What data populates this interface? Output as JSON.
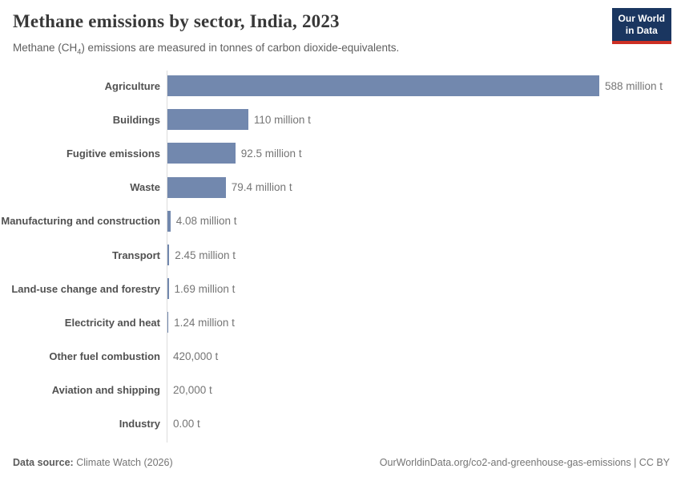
{
  "header": {
    "title": "Methane emissions by sector, India, 2023",
    "subtitle_prefix": "Methane (CH",
    "subtitle_sub": "4",
    "subtitle_suffix": ") emissions are measured in tonnes of carbon dioxide-equivalents.",
    "logo_line1": "Our World",
    "logo_line2": "in Data"
  },
  "chart_data": {
    "type": "bar",
    "orientation": "horizontal",
    "title": "Methane emissions by sector, India, 2023",
    "subtitle": "Methane (CH4) emissions are measured in tonnes of carbon dioxide-equivalents.",
    "unit": "tonnes of carbon dioxide-equivalents",
    "categories": [
      "Agriculture",
      "Buildings",
      "Fugitive emissions",
      "Waste",
      "Manufacturing and construction",
      "Transport",
      "Land-use change and forestry",
      "Electricity and heat",
      "Other fuel combustion",
      "Aviation and shipping",
      "Industry"
    ],
    "values_million_t": [
      588,
      110,
      92.5,
      79.4,
      4.08,
      2.45,
      1.69,
      1.24,
      0.42,
      0.02,
      0
    ],
    "value_labels": [
      "588 million t",
      "110 million t",
      "92.5 million t",
      "79.4 million t",
      "4.08 million t",
      "2.45 million t",
      "1.69 million t",
      "1.24 million t",
      "420,000 t",
      "20,000 t",
      "0.00 t"
    ],
    "xlim": [
      0,
      588
    ],
    "grid": false,
    "legend": false,
    "bar_color": "#7288ae",
    "axis_color": "#dcdcdc"
  },
  "footer": {
    "source_label": "Data source:",
    "source_value": " Climate Watch (2026)",
    "link": "OurWorldinData.org/co2-and-greenhouse-gas-emissions | CC BY"
  }
}
